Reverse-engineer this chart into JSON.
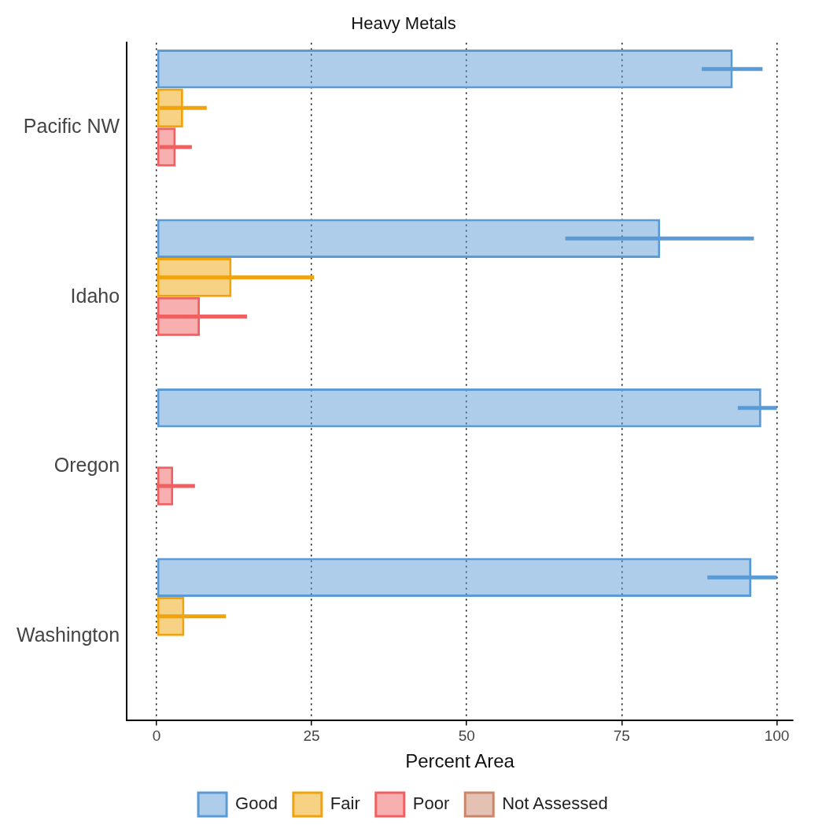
{
  "chart_data": {
    "type": "bar",
    "orientation": "horizontal",
    "title": "Heavy Metals",
    "xlabel": "Percent Area",
    "categories": [
      "Pacific NW",
      "Idaho",
      "Oregon",
      "Washington"
    ],
    "series": [
      {
        "name": "Good",
        "color": "#5b9bd5",
        "values": [
          92.9,
          81.2,
          97.5,
          95.9
        ],
        "errors": [
          [
            87.9,
            97.7
          ],
          [
            65.9,
            96.3
          ],
          [
            93.7,
            100
          ],
          [
            88.8,
            100
          ]
        ]
      },
      {
        "name": "Fair",
        "color": "#f0a30a",
        "values": [
          4.3,
          12.1,
          0,
          4.5
        ],
        "errors": [
          [
            0.5,
            8.1
          ],
          [
            0,
            25.4
          ],
          null,
          [
            0,
            11.2
          ]
        ]
      },
      {
        "name": "Poor",
        "color": "#f06060",
        "values": [
          3.1,
          7.0,
          2.7,
          0
        ],
        "errors": [
          [
            0.5,
            5.7
          ],
          [
            0,
            14.6
          ],
          [
            0,
            6.2
          ],
          null
        ]
      },
      {
        "name": "Not Assessed",
        "color": "#c8866a",
        "values": [
          0,
          0,
          0,
          0
        ]
      }
    ],
    "xlim": [
      -4.8,
      102.6
    ],
    "xticks": [
      0,
      25,
      50,
      75,
      100
    ],
    "grid": "x",
    "legend": "bottom"
  }
}
